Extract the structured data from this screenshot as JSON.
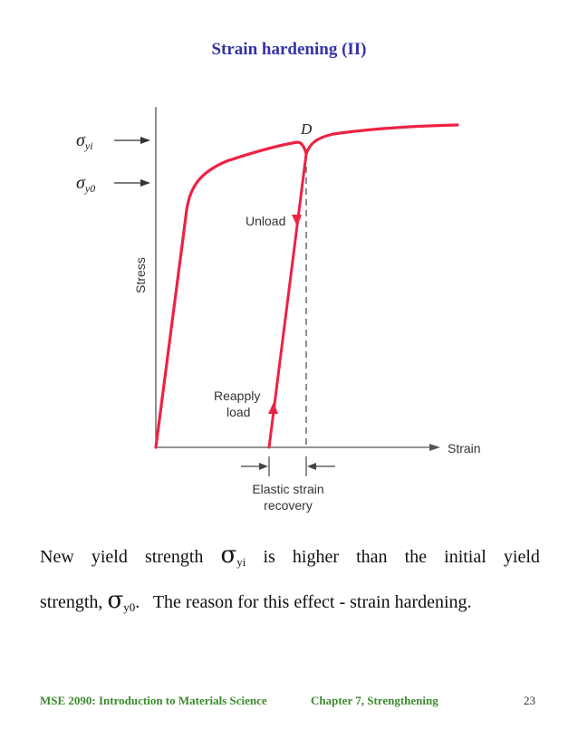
{
  "title": "Strain hardening (II)",
  "figure": {
    "point_label": "D",
    "sigma_yi_label": "σ",
    "sigma_yi_sub": "yi",
    "sigma_y0_label": "σ",
    "sigma_y0_sub": "y0",
    "unload_label": "Unload",
    "reapply_label_1": "Reapply",
    "reapply_label_2": "load",
    "y_axis_label": "Stress",
    "x_axis_label": "Strain",
    "recovery_label_1": "Elastic strain",
    "recovery_label_2": "recovery",
    "curve_color": "#ee2244"
  },
  "text": {
    "l1_a": "New",
    "l1_b": "yield",
    "l1_c": "strength",
    "l1_sigma": "σ",
    "l1_sub": "yi",
    "l1_d": "is",
    "l1_e": "higher",
    "l1_f": "than",
    "l1_g": "the",
    "l1_h": "initial",
    "l1_i": "yield",
    "l2_a": "strength,",
    "l2_sigma": "σ",
    "l2_sub": "y0",
    "l2_b": ".   The reason for this effect - strain hardening."
  },
  "footer": {
    "course": "MSE 2090: Introduction to Materials Science",
    "chapter": "Chapter 7, Strengthening",
    "page": "23"
  }
}
